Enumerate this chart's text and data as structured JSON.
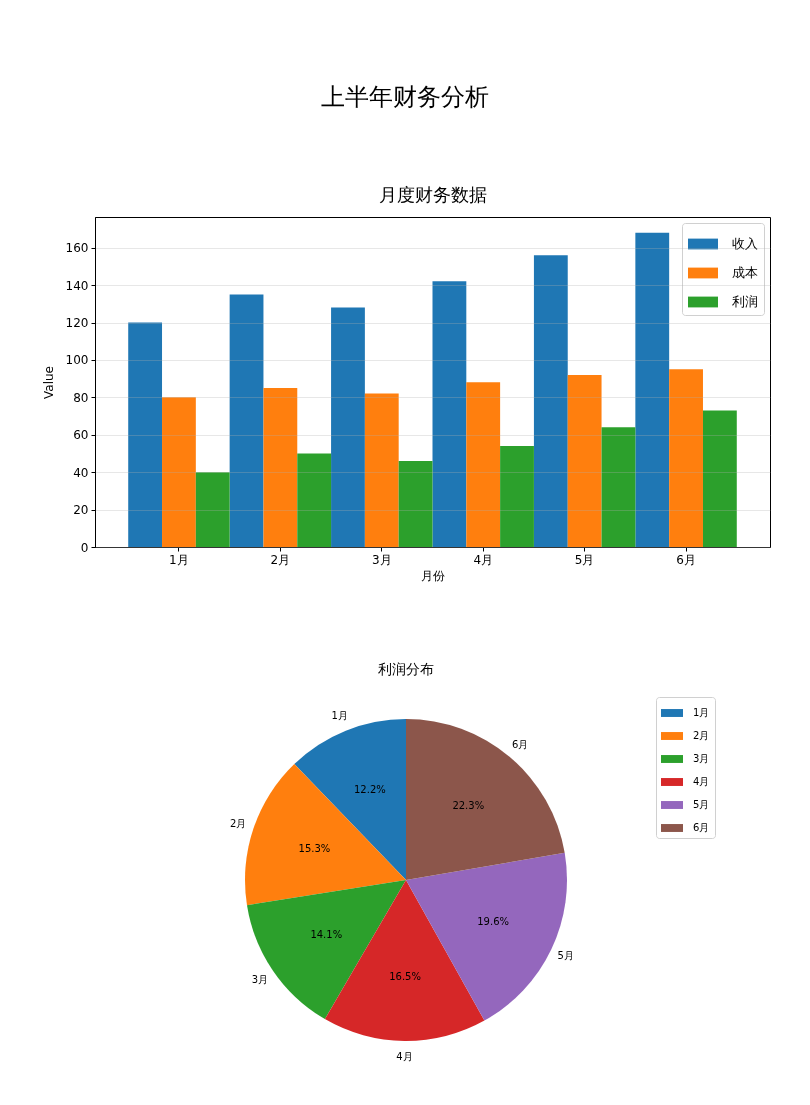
{
  "chart_data": [
    {
      "type": "other",
      "title": "上半年财务分析"
    },
    {
      "type": "bar",
      "title": "月度财务数据",
      "xlabel": "月份",
      "ylabel": "Value",
      "categories": [
        "1月",
        "2月",
        "3月",
        "4月",
        "5月",
        "6月"
      ],
      "series": [
        {
          "name": "收入",
          "color": "#1f77b4",
          "values": [
            120,
            135,
            128,
            142,
            156,
            168
          ]
        },
        {
          "name": "成本",
          "color": "#ff7f0e",
          "values": [
            80,
            85,
            82,
            88,
            92,
            95
          ]
        },
        {
          "name": "利润",
          "color": "#2ca02c",
          "values": [
            40,
            50,
            46,
            54,
            64,
            73
          ]
        }
      ],
      "ylim": [
        0,
        176.4
      ],
      "yticks": [
        0,
        20,
        40,
        60,
        80,
        100,
        120,
        140,
        160
      ],
      "grid": "y",
      "legend": "top right"
    },
    {
      "type": "pie",
      "title": "利润分布",
      "categories": [
        "1月",
        "2月",
        "3月",
        "4月",
        "5月",
        "6月"
      ],
      "values": [
        12.2,
        15.3,
        14.1,
        16.5,
        19.6,
        22.3
      ],
      "colors": [
        "#1f77b4",
        "#ff7f0e",
        "#2ca02c",
        "#d62728",
        "#9467bd",
        "#8c564b"
      ],
      "value_labels": [
        "12.2%",
        "15.3%",
        "14.1%",
        "16.5%",
        "19.6%",
        "22.3%"
      ],
      "legend": "top right"
    }
  ]
}
